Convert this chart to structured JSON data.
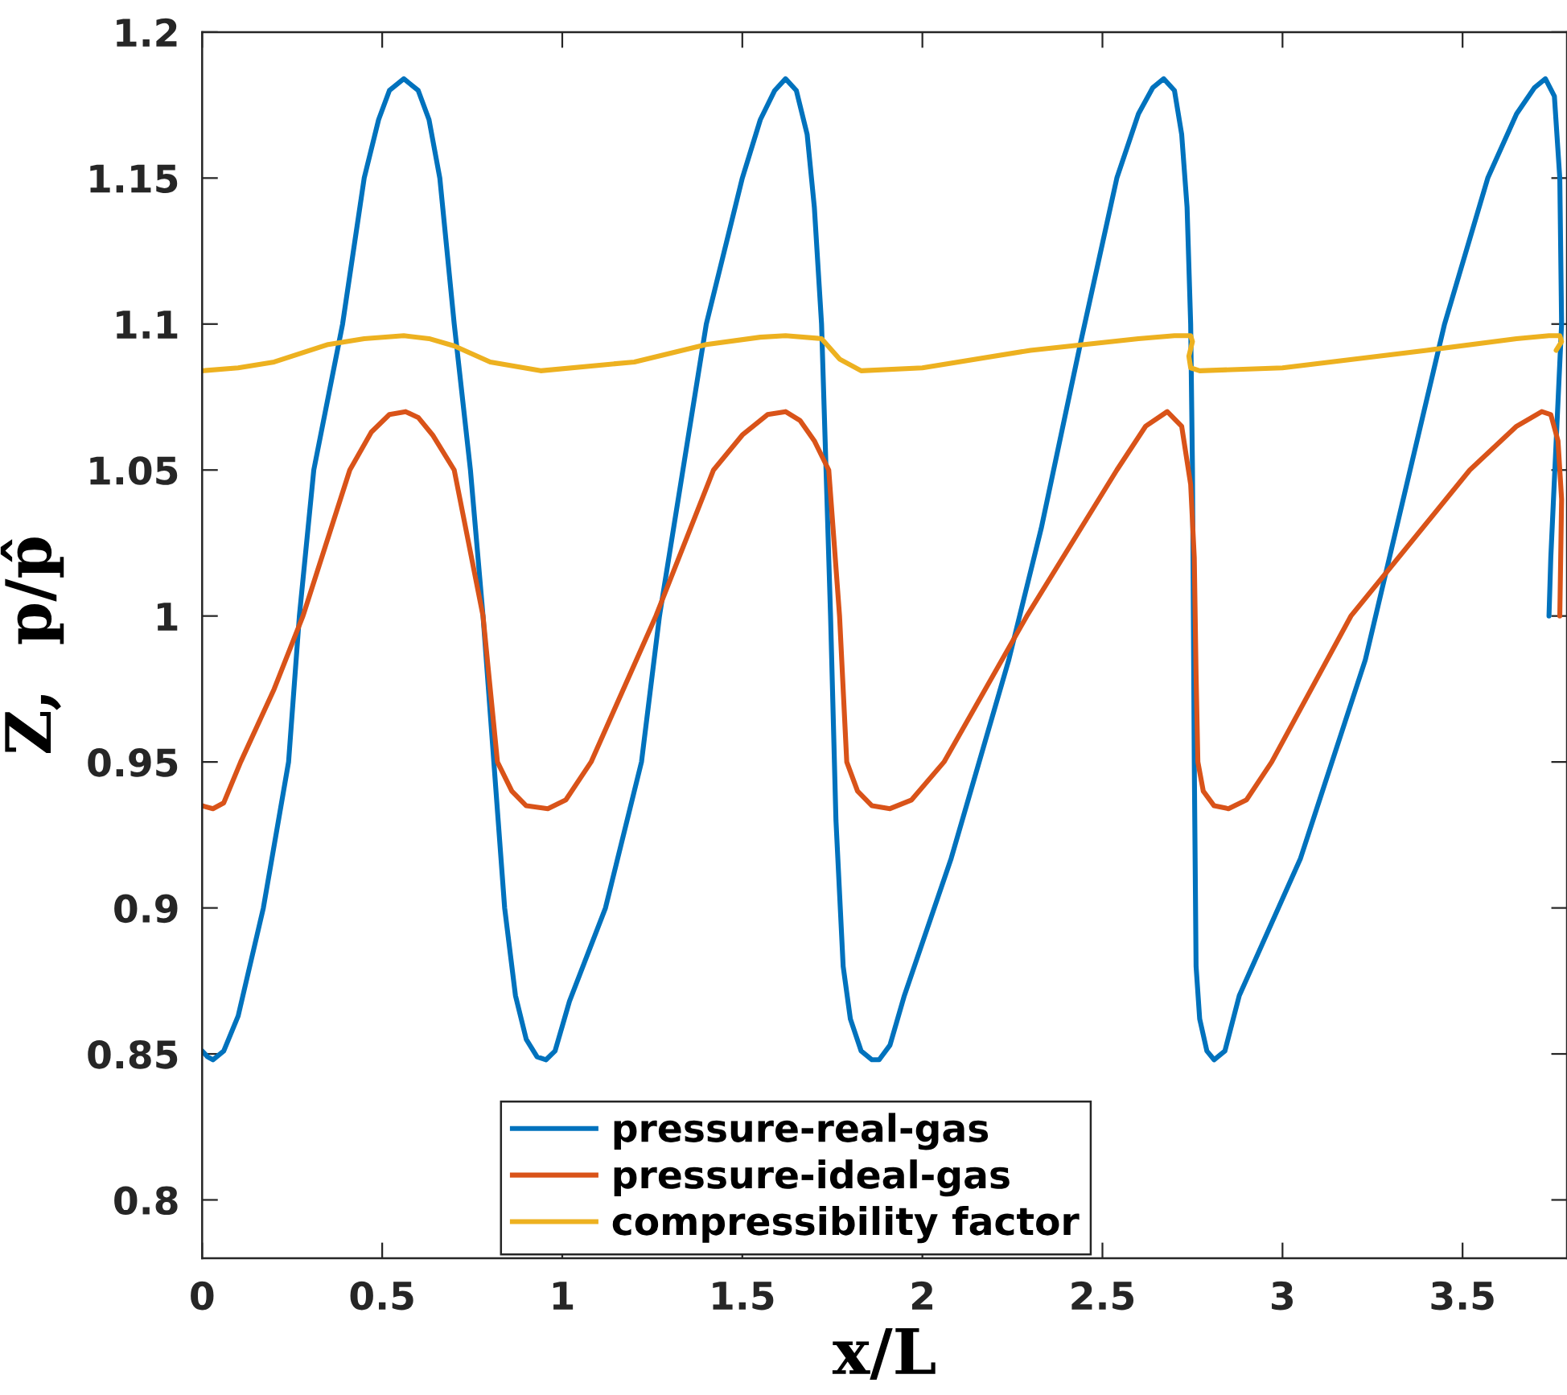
{
  "chart_data": {
    "type": "line",
    "xlabel": "x/L",
    "ylabel": "Z,  p/p̂",
    "xlim": [
      0,
      3.79
    ],
    "ylim": [
      0.78,
      1.2
    ],
    "xticks": [
      0,
      0.5,
      1,
      1.5,
      2,
      2.5,
      3,
      3.5
    ],
    "yticks": [
      0.8,
      0.85,
      0.9,
      0.95,
      1,
      1.05,
      1.1,
      1.15,
      1.2
    ],
    "grid": false,
    "legend": "bottom",
    "marker": "none",
    "line_style": "solid",
    "series": [
      {
        "name": "pressure-real-gas",
        "color": "#0072bd",
        "x": [
          0,
          0.015,
          0.03,
          0.06,
          0.1,
          0.17,
          0.24,
          0.27,
          0.31,
          0.39,
          0.45,
          0.49,
          0.52,
          0.56,
          0.6,
          0.63,
          0.66,
          0.7,
          0.745,
          0.78,
          0.81,
          0.84,
          0.87,
          0.9,
          0.93,
          0.955,
          0.98,
          1.02,
          1.12,
          1.22,
          1.27,
          1.4,
          1.5,
          1.55,
          1.59,
          1.62,
          1.65,
          1.68,
          1.7,
          1.72,
          1.745,
          1.76,
          1.78,
          1.8,
          1.83,
          1.86,
          1.88,
          1.91,
          1.95,
          2.08,
          2.24,
          2.33,
          2.44,
          2.54,
          2.6,
          2.64,
          2.67,
          2.7,
          2.72,
          2.735,
          2.745,
          2.75,
          2.755,
          2.76,
          2.77,
          2.79,
          2.81,
          2.84,
          2.88,
          3.05,
          3.23,
          3.45,
          3.57,
          3.65,
          3.7,
          3.73,
          3.755,
          3.77,
          3.775,
          3.76,
          3.745,
          3.74
        ],
        "values": [
          0.851,
          0.849,
          0.848,
          0.851,
          0.863,
          0.9,
          0.95,
          1.0,
          1.05,
          1.1,
          1.15,
          1.17,
          1.18,
          1.184,
          1.18,
          1.17,
          1.15,
          1.1,
          1.05,
          1.0,
          0.95,
          0.9,
          0.87,
          0.855,
          0.849,
          0.848,
          0.851,
          0.868,
          0.9,
          0.95,
          1.0,
          1.1,
          1.15,
          1.17,
          1.18,
          1.184,
          1.18,
          1.165,
          1.14,
          1.1,
          1.0,
          0.93,
          0.88,
          0.862,
          0.851,
          0.848,
          0.848,
          0.853,
          0.87,
          0.917,
          0.985,
          1.03,
          1.094,
          1.15,
          1.172,
          1.181,
          1.184,
          1.18,
          1.165,
          1.14,
          1.1,
          1.05,
          0.95,
          0.88,
          0.862,
          0.851,
          0.848,
          0.851,
          0.87,
          0.917,
          0.985,
          1.1,
          1.15,
          1.172,
          1.181,
          1.184,
          1.178,
          1.15,
          1.1,
          1.06,
          1.02,
          1.0
        ]
      },
      {
        "name": "pressure-ideal-gas",
        "color": "#d95319",
        "x": [
          0,
          0.03,
          0.06,
          0.107,
          0.2,
          0.28,
          0.41,
          0.47,
          0.52,
          0.565,
          0.6,
          0.64,
          0.7,
          0.78,
          0.82,
          0.86,
          0.9,
          0.96,
          1.01,
          1.08,
          1.26,
          1.42,
          1.5,
          1.57,
          1.62,
          1.66,
          1.7,
          1.74,
          1.77,
          1.79,
          1.82,
          1.86,
          1.91,
          1.97,
          2.06,
          2.29,
          2.54,
          2.62,
          2.68,
          2.72,
          2.745,
          2.755,
          2.76,
          2.765,
          2.78,
          2.81,
          2.85,
          2.9,
          2.97,
          3.19,
          3.52,
          3.65,
          3.72,
          3.745,
          3.765,
          3.775,
          3.77
        ],
        "values": [
          0.935,
          0.934,
          0.936,
          0.95,
          0.975,
          1.0,
          1.05,
          1.063,
          1.069,
          1.07,
          1.068,
          1.062,
          1.05,
          1.0,
          0.95,
          0.94,
          0.935,
          0.934,
          0.937,
          0.95,
          1.0,
          1.05,
          1.062,
          1.069,
          1.07,
          1.067,
          1.06,
          1.05,
          1.0,
          0.95,
          0.94,
          0.935,
          0.934,
          0.937,
          0.95,
          1.0,
          1.05,
          1.065,
          1.07,
          1.065,
          1.045,
          1.02,
          0.98,
          0.95,
          0.94,
          0.935,
          0.934,
          0.937,
          0.95,
          1.0,
          1.05,
          1.065,
          1.07,
          1.069,
          1.06,
          1.04,
          1.0
        ]
      },
      {
        "name": "compressibility factor",
        "color": "#edb120",
        "x": [
          0,
          0.1,
          0.2,
          0.35,
          0.45,
          0.56,
          0.63,
          0.7,
          0.8,
          0.94,
          1.2,
          1.4,
          1.55,
          1.62,
          1.72,
          1.77,
          1.83,
          2.0,
          2.3,
          2.6,
          2.7,
          2.745,
          2.75,
          2.74,
          2.745,
          2.77,
          3.0,
          3.4,
          3.65,
          3.74,
          3.77,
          3.775,
          3.76
        ],
        "values": [
          1.084,
          1.085,
          1.087,
          1.093,
          1.095,
          1.096,
          1.095,
          1.0925,
          1.087,
          1.084,
          1.087,
          1.093,
          1.0955,
          1.096,
          1.095,
          1.088,
          1.084,
          1.085,
          1.091,
          1.095,
          1.096,
          1.096,
          1.094,
          1.089,
          1.085,
          1.084,
          1.085,
          1.091,
          1.095,
          1.096,
          1.096,
          1.094,
          1.091
        ]
      }
    ]
  }
}
